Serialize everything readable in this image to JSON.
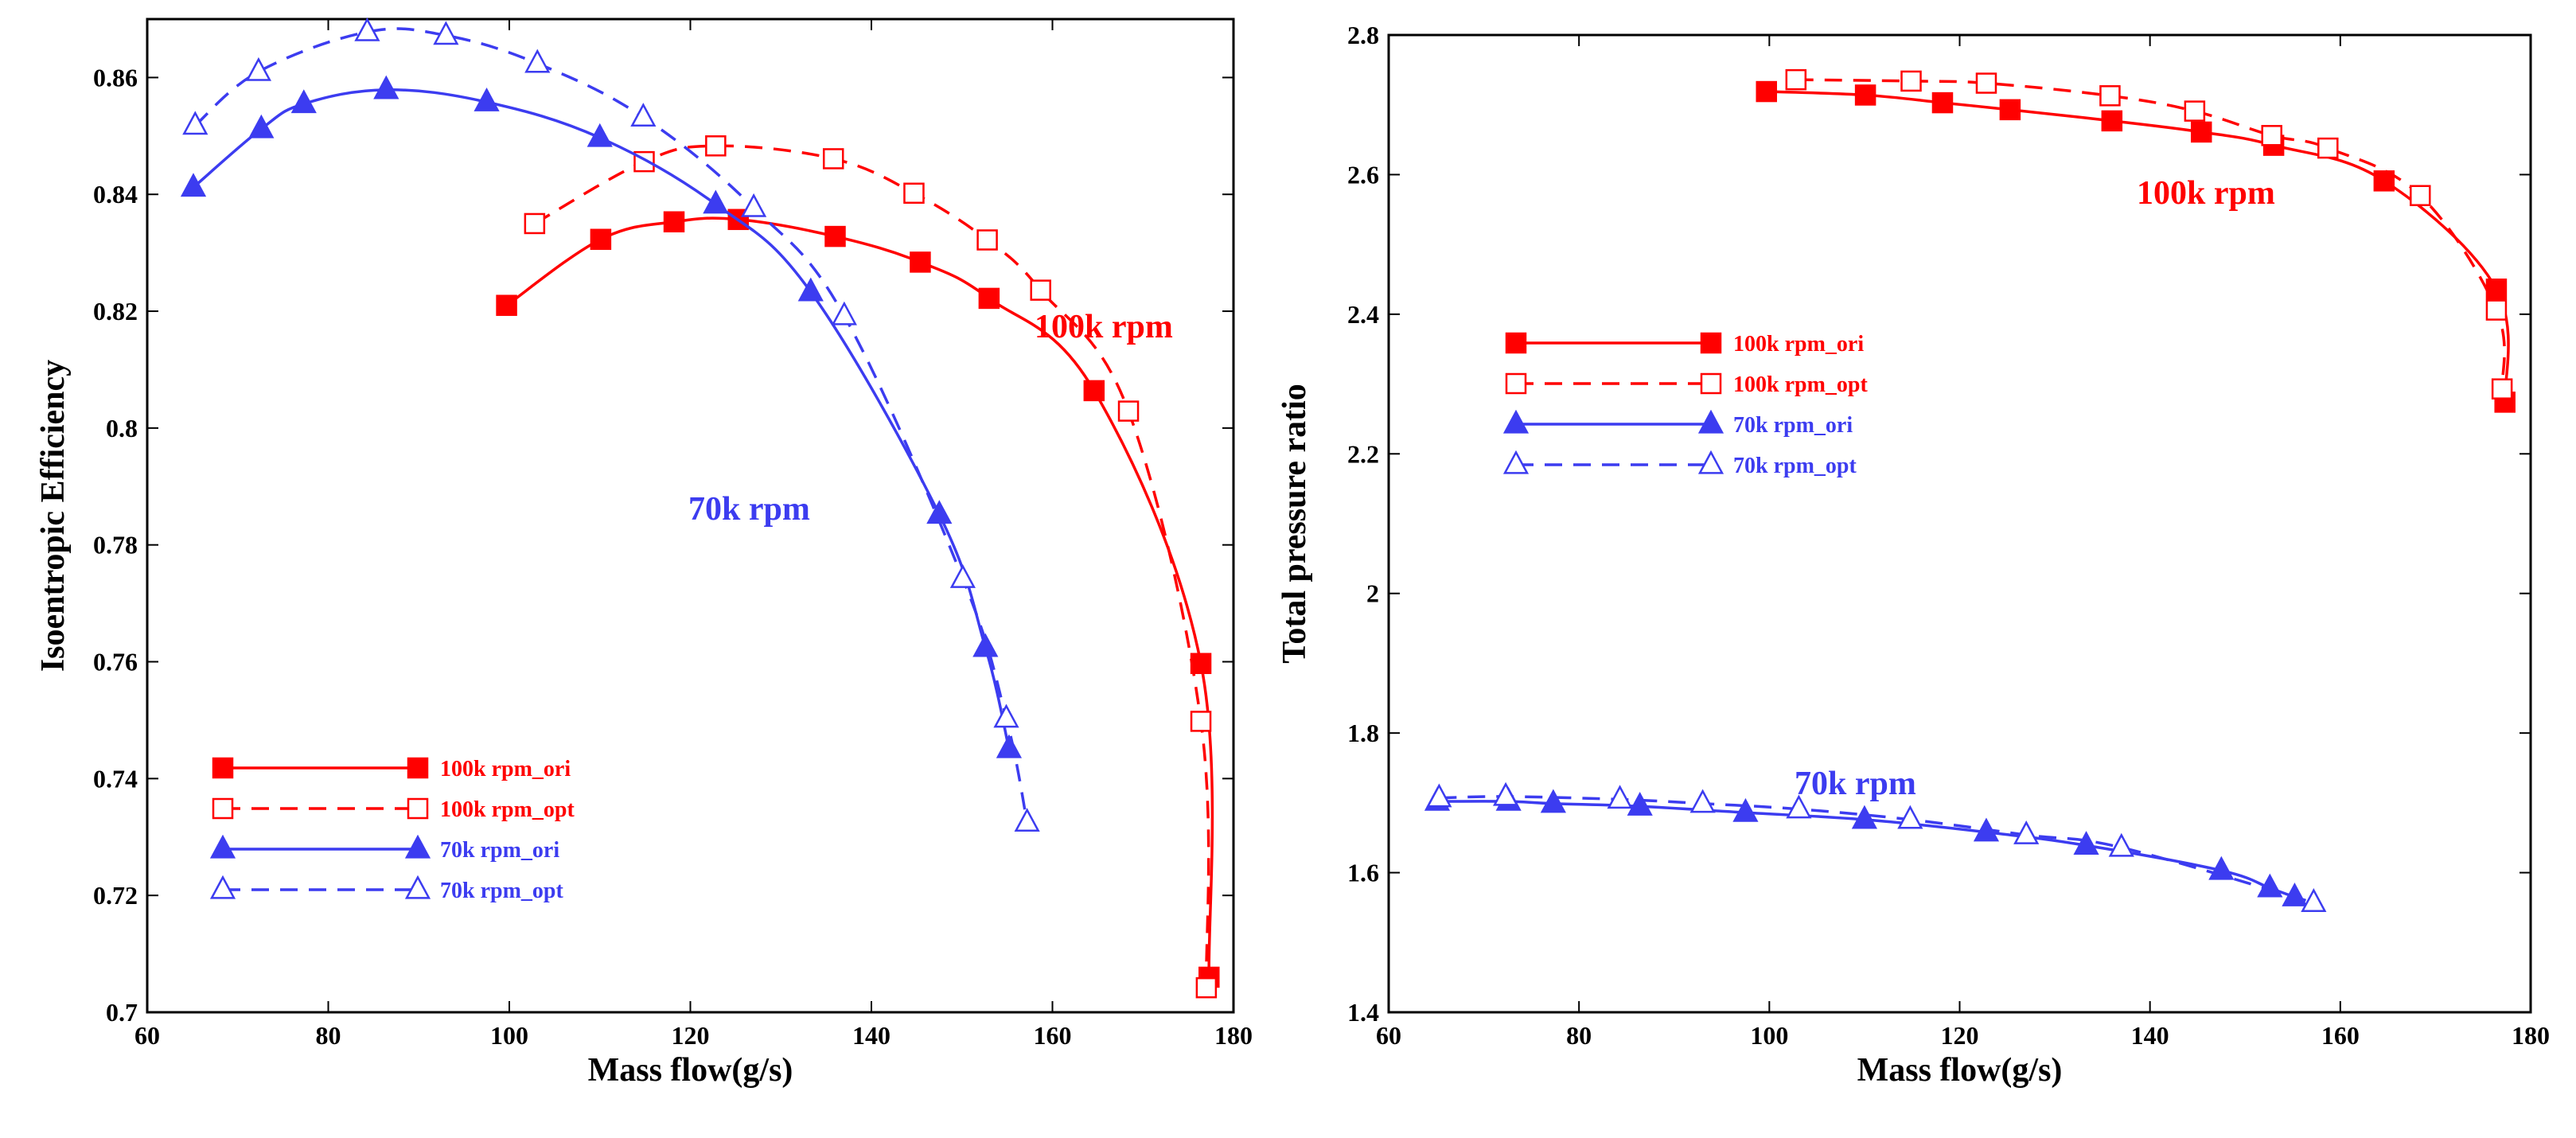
{
  "colors": {
    "red": "#ff0000",
    "blue": "#3c3cf0"
  },
  "chart_data": [
    {
      "type": "line",
      "xlabel": "Mass flow(g/s)",
      "ylabel": "Isoentropic Efficiency",
      "xlim": [
        60,
        180
      ],
      "ylim": [
        0.7,
        0.87
      ],
      "xticks": [
        "60",
        "80",
        "100",
        "120",
        "140",
        "160",
        "180"
      ],
      "yticks": [
        "0.7",
        "0.72",
        "0.74",
        "0.76",
        "0.78",
        "0.8",
        "0.82",
        "0.84",
        "0.86"
      ],
      "legend_position": "bottom-left",
      "annotations": [
        {
          "text": "100k rpm",
          "color": "red"
        },
        {
          "text": "70k rpm",
          "color": "blue"
        }
      ],
      "series": [
        {
          "name": "100k rpm_ori",
          "color": "red",
          "marker": "square-filled",
          "dash": "solid",
          "x": [
            99.7,
            110.1,
            118.2,
            125.3,
            136.0,
            145.4,
            153.0,
            164.6,
            176.4,
            177.3
          ],
          "y": [
            0.821,
            0.8323,
            0.8353,
            0.8357,
            0.8328,
            0.8284,
            0.8222,
            0.8064,
            0.7597,
            0.706
          ]
        },
        {
          "name": "100k rpm_opt",
          "color": "red",
          "marker": "square-open",
          "dash": "dashed",
          "x": [
            102.8,
            114.9,
            122.8,
            135.8,
            144.7,
            152.8,
            158.7,
            168.4,
            176.4,
            177.0
          ],
          "y": [
            0.835,
            0.8456,
            0.8483,
            0.8461,
            0.8402,
            0.8322,
            0.8236,
            0.8029,
            0.7498,
            0.7042
          ]
        },
        {
          "name": "70k rpm_ori",
          "color": "blue",
          "marker": "triangle-filled",
          "dash": "solid",
          "x": [
            65.1,
            72.6,
            77.3,
            86.4,
            97.5,
            110.0,
            122.8,
            133.3,
            147.5,
            152.6,
            155.2
          ],
          "y": [
            0.8412,
            0.8512,
            0.8555,
            0.8579,
            0.8558,
            0.8497,
            0.8383,
            0.8233,
            0.7852,
            0.7624,
            0.7451
          ]
        },
        {
          "name": "70k rpm_opt",
          "color": "blue",
          "marker": "triangle-open",
          "dash": "dashed",
          "x": [
            65.3,
            72.3,
            84.3,
            93.0,
            103.1,
            114.8,
            127.0,
            137.0,
            150.1,
            154.9,
            157.2
          ],
          "y": [
            0.8518,
            0.861,
            0.8678,
            0.8672,
            0.8624,
            0.8532,
            0.8377,
            0.8192,
            0.7742,
            0.7503,
            0.7325
          ]
        }
      ]
    },
    {
      "type": "line",
      "xlabel": "Mass flow(g/s)",
      "ylabel": "Total pressure ratio",
      "xlim": [
        60,
        180
      ],
      "ylim": [
        1.4,
        2.8
      ],
      "xticks": [
        "60",
        "80",
        "100",
        "120",
        "140",
        "160",
        "180"
      ],
      "yticks": [
        "1.4",
        "1.6",
        "1.8",
        "2",
        "2.2",
        "2.4",
        "2.6",
        "2.8"
      ],
      "legend_position": "middle-left",
      "annotations": [
        {
          "text": "100k rpm",
          "color": "red"
        },
        {
          "text": "70k rpm",
          "color": "blue"
        }
      ],
      "series": [
        {
          "name": "100k rpm_ori",
          "color": "red",
          "marker": "square-filled",
          "dash": "solid",
          "x": [
            99.7,
            110.1,
            118.2,
            125.3,
            136.0,
            145.4,
            153.0,
            164.6,
            176.4,
            177.3
          ],
          "y": [
            2.719,
            2.714,
            2.703,
            2.693,
            2.677,
            2.661,
            2.642,
            2.591,
            2.436,
            2.274
          ]
        },
        {
          "name": "100k rpm_opt",
          "color": "red",
          "marker": "square-open",
          "dash": "dashed",
          "x": [
            102.8,
            114.9,
            122.8,
            135.8,
            144.7,
            152.8,
            158.7,
            168.4,
            176.4,
            177.0
          ],
          "y": [
            2.736,
            2.734,
            2.731,
            2.713,
            2.691,
            2.656,
            2.638,
            2.57,
            2.406,
            2.293
          ]
        },
        {
          "name": "70k rpm_ori",
          "color": "blue",
          "marker": "triangle-filled",
          "dash": "solid",
          "x": [
            65.1,
            72.6,
            77.3,
            86.4,
            97.5,
            110.0,
            122.8,
            133.3,
            147.5,
            152.6,
            155.2
          ],
          "y": [
            1.702,
            1.702,
            1.699,
            1.695,
            1.686,
            1.676,
            1.658,
            1.639,
            1.603,
            1.578,
            1.565
          ]
        },
        {
          "name": "70k rpm_opt",
          "color": "blue",
          "marker": "triangle-open",
          "dash": "dashed",
          "x": [
            65.3,
            72.3,
            84.3,
            93.0,
            103.1,
            114.8,
            127.0,
            137.0,
            157.2
          ],
          "y": [
            1.707,
            1.709,
            1.705,
            1.699,
            1.691,
            1.676,
            1.654,
            1.636,
            1.557
          ]
        }
      ]
    }
  ]
}
